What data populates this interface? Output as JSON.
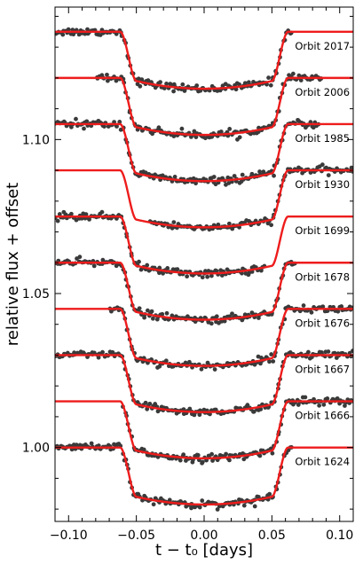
{
  "chart_data": {
    "type": "scatter",
    "xlabel": "t − t₀ [days]",
    "ylabel": "relative flux + offset",
    "xlim": [
      -0.11,
      0.11
    ],
    "ylim": [
      0.976,
      1.143
    ],
    "xticks": [
      -0.1,
      -0.05,
      0.0,
      0.05,
      0.1
    ],
    "xtick_labels": [
      "−0.10",
      "−0.05",
      "0.00",
      "0.05",
      "0.10"
    ],
    "yticks": [
      1.0,
      1.05,
      1.1
    ],
    "ytick_labels": [
      "1.00",
      "1.05",
      "1.10"
    ],
    "grid": false,
    "legend": "none",
    "colors": {
      "model": "#ee1c1c",
      "points": "#3a3a3a",
      "axis": "#000000"
    },
    "transit": {
      "t1": -0.062,
      "t2": -0.05,
      "t3": 0.05,
      "t4": 0.062,
      "depth": 0.016,
      "curvature": 0.0025
    },
    "orbits": [
      {
        "name": "Orbit 2017",
        "baseline": 1.135,
        "x_range": [
          -0.11,
          0.065
        ]
      },
      {
        "name": "Orbit 2006",
        "baseline": 1.12,
        "x_range": [
          -0.08,
          0.087
        ]
      },
      {
        "name": "Orbit 1985",
        "baseline": 1.105,
        "x_range": [
          -0.11,
          0.085
        ]
      },
      {
        "name": "Orbit 1930",
        "baseline": 1.09,
        "x_range": [
          -0.04,
          0.11
        ]
      },
      {
        "name": "Orbit 1699",
        "baseline": 1.075,
        "x_range": [
          -0.11,
          0.045
        ]
      },
      {
        "name": "Orbit 1678",
        "baseline": 1.06,
        "x_range": [
          -0.11,
          0.068
        ]
      },
      {
        "name": "Orbit 1676",
        "baseline": 1.045,
        "x_range": [
          -0.07,
          0.11
        ]
      },
      {
        "name": "Orbit 1667",
        "baseline": 1.03,
        "x_range": [
          -0.11,
          0.11
        ]
      },
      {
        "name": "Orbit 1666",
        "baseline": 1.015,
        "x_range": [
          -0.06,
          0.11
        ]
      },
      {
        "name": "Orbit 1624",
        "baseline": 1.0,
        "x_range": [
          -0.11,
          0.065
        ]
      }
    ]
  }
}
